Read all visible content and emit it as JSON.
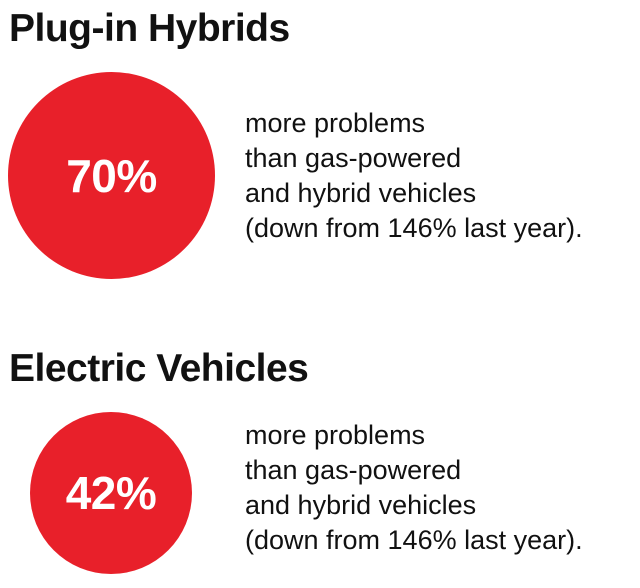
{
  "accent_color": "#e8202a",
  "sections": [
    {
      "title": "Plug-in Hybrids",
      "value": "70%",
      "lines": [
        "more problems",
        "than gas-powered",
        "and hybrid vehicles",
        "(down from 146% last year)."
      ]
    },
    {
      "title": "Electric Vehicles",
      "value": "42%",
      "lines": [
        "more problems",
        "than gas-powered",
        "and hybrid vehicles",
        "(down from 146% last year)."
      ]
    }
  ]
}
